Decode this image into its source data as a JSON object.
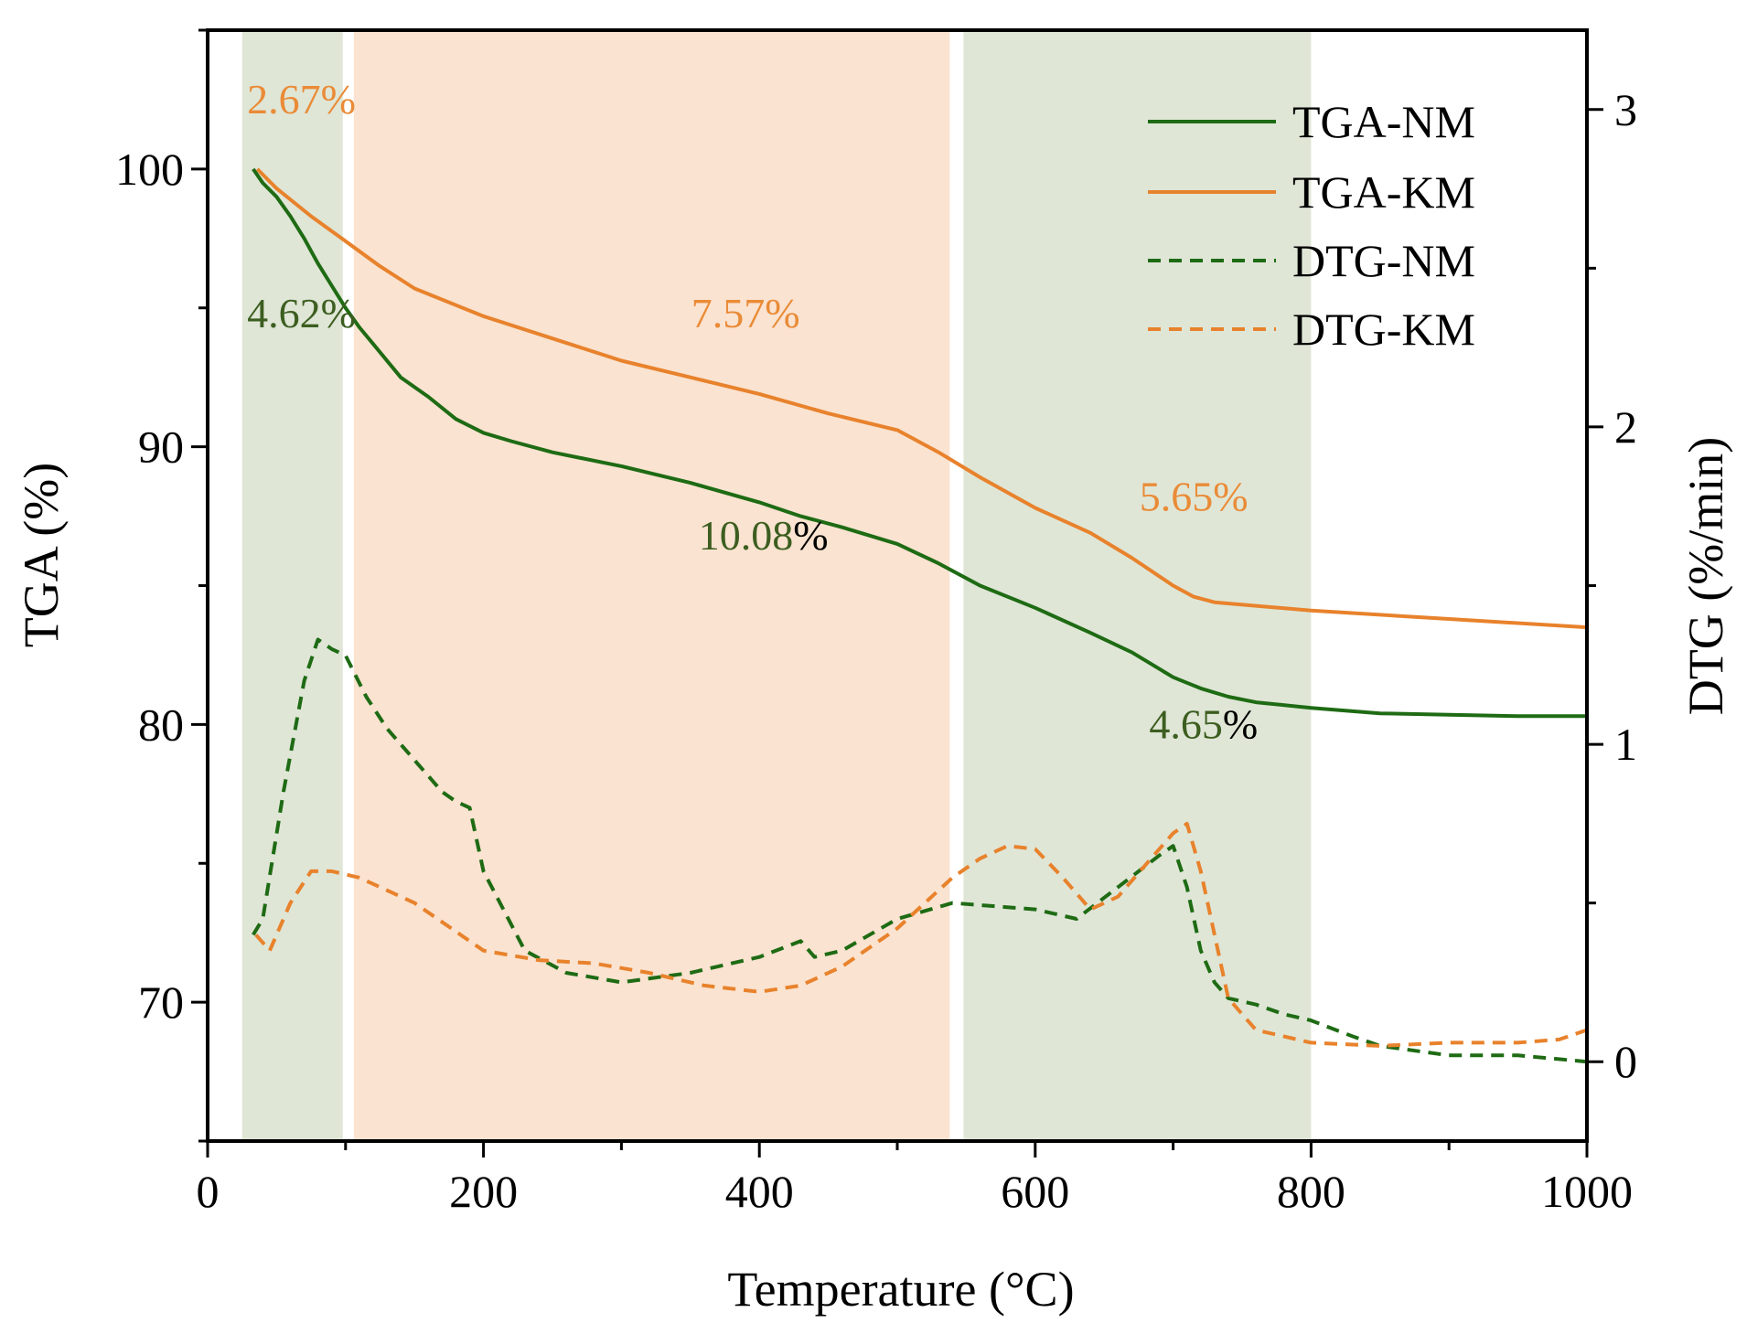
{
  "chart_data": {
    "type": "line",
    "xlabel": "Temperature (°C)",
    "ylabel_left": "TGA (%)",
    "ylabel_right": "DTG (%/min)",
    "xlim": [
      0,
      1000
    ],
    "ylim_left": [
      65.0,
      105.0
    ],
    "ylim_right": [
      -0.25,
      3.25
    ],
    "xticks": [
      0,
      200,
      400,
      600,
      800,
      1000
    ],
    "yticks_left": [
      70,
      80,
      90,
      100
    ],
    "yticks_right": [
      0,
      1,
      2,
      3
    ],
    "legend_position": "top-right",
    "colors": {
      "nm": "#1e6b14",
      "km": "#e8822c",
      "nm_label": "#3c5e20",
      "km_label": "#ea8b37",
      "black": "#000000"
    },
    "regions": [
      {
        "from": 25,
        "to": 98,
        "color": "#dfe6d6"
      },
      {
        "from": 106,
        "to": 538,
        "color": "#fae3d0"
      },
      {
        "from": 548,
        "to": 800,
        "color": "#dfe6d6"
      }
    ],
    "series": [
      {
        "name": "TGA-NM",
        "axis": "left",
        "style": "solid",
        "color": "#1e6b14",
        "x": [
          33,
          40,
          50,
          60,
          70,
          80,
          90,
          100,
          110,
          120,
          140,
          160,
          180,
          200,
          220,
          250,
          300,
          350,
          400,
          430,
          460,
          500,
          530,
          560,
          600,
          640,
          670,
          690,
          700,
          710,
          720,
          740,
          760,
          800,
          850,
          900,
          950,
          1000
        ],
        "y": [
          100.0,
          99.5,
          99.0,
          98.3,
          97.5,
          96.6,
          95.8,
          95.0,
          94.3,
          93.7,
          92.5,
          91.8,
          91.0,
          90.5,
          90.2,
          89.8,
          89.3,
          88.7,
          88.0,
          87.5,
          87.1,
          86.5,
          85.8,
          85.0,
          84.2,
          83.3,
          82.6,
          82.0,
          81.7,
          81.5,
          81.3,
          81.0,
          80.8,
          80.6,
          80.4,
          80.35,
          80.3,
          80.3
        ]
      },
      {
        "name": "TGA-KM",
        "axis": "left",
        "style": "solid",
        "color": "#e8822c",
        "x": [
          36,
          50,
          75,
          100,
          125,
          150,
          200,
          250,
          300,
          350,
          400,
          450,
          500,
          530,
          560,
          600,
          640,
          670,
          700,
          715,
          730,
          800,
          900,
          1000
        ],
        "y": [
          100.0,
          99.3,
          98.3,
          97.4,
          96.5,
          95.7,
          94.7,
          93.9,
          93.1,
          92.5,
          91.9,
          91.2,
          90.6,
          89.8,
          88.9,
          87.8,
          86.9,
          86.0,
          85.0,
          84.6,
          84.4,
          84.1,
          83.8,
          83.5
        ]
      },
      {
        "name": "DTG-NM",
        "axis": "right",
        "style": "dashed",
        "color": "#1e6b14",
        "x": [
          33,
          40,
          55,
          70,
          80,
          90,
          100,
          115,
          130,
          150,
          170,
          180,
          190,
          200,
          230,
          260,
          300,
          350,
          400,
          430,
          440,
          460,
          500,
          540,
          600,
          630,
          660,
          690,
          700,
          710,
          720,
          730,
          740,
          760,
          780,
          800,
          830,
          850,
          900,
          950,
          1000
        ],
        "y": [
          0.4,
          0.45,
          0.85,
          1.2,
          1.33,
          1.3,
          1.28,
          1.15,
          1.05,
          0.95,
          0.85,
          0.82,
          0.8,
          0.6,
          0.35,
          0.28,
          0.25,
          0.28,
          0.33,
          0.38,
          0.33,
          0.35,
          0.45,
          0.5,
          0.48,
          0.45,
          0.55,
          0.65,
          0.68,
          0.55,
          0.35,
          0.25,
          0.2,
          0.18,
          0.15,
          0.13,
          0.08,
          0.05,
          0.02,
          0.02,
          0.0
        ]
      },
      {
        "name": "DTG-KM",
        "axis": "right",
        "style": "dashed",
        "color": "#e8822c",
        "x": [
          35,
          45,
          60,
          75,
          90,
          110,
          150,
          200,
          240,
          280,
          320,
          360,
          400,
          430,
          460,
          500,
          540,
          560,
          580,
          600,
          620,
          640,
          660,
          680,
          700,
          710,
          720,
          740,
          760,
          800,
          850,
          900,
          950,
          980,
          1000
        ],
        "y": [
          0.4,
          0.35,
          0.5,
          0.6,
          0.6,
          0.58,
          0.5,
          0.35,
          0.32,
          0.31,
          0.28,
          0.24,
          0.22,
          0.24,
          0.3,
          0.42,
          0.58,
          0.64,
          0.68,
          0.67,
          0.58,
          0.48,
          0.52,
          0.62,
          0.72,
          0.75,
          0.6,
          0.2,
          0.1,
          0.06,
          0.05,
          0.06,
          0.06,
          0.07,
          0.1
        ]
      }
    ],
    "annotations": [
      {
        "text": "2.67%",
        "x": 68,
        "y": 102.0,
        "color": "#ea8b37"
      },
      {
        "text": "4.62%",
        "x": 68,
        "y": 94.3,
        "color": "#3c5e20"
      },
      {
        "text": "7.57%",
        "x": 390,
        "y": 94.3,
        "color": "#ea8b37"
      },
      {
        "text": "10.08",
        "suffix": "%",
        "x": 403,
        "y": 86.3,
        "color": "#3c5e20"
      },
      {
        "text": "5.65%",
        "x": 715,
        "y": 87.7,
        "color": "#ea8b37"
      },
      {
        "text": "4.65",
        "suffix": "%",
        "x": 722,
        "y": 79.5,
        "color": "#3c5e20"
      }
    ]
  }
}
